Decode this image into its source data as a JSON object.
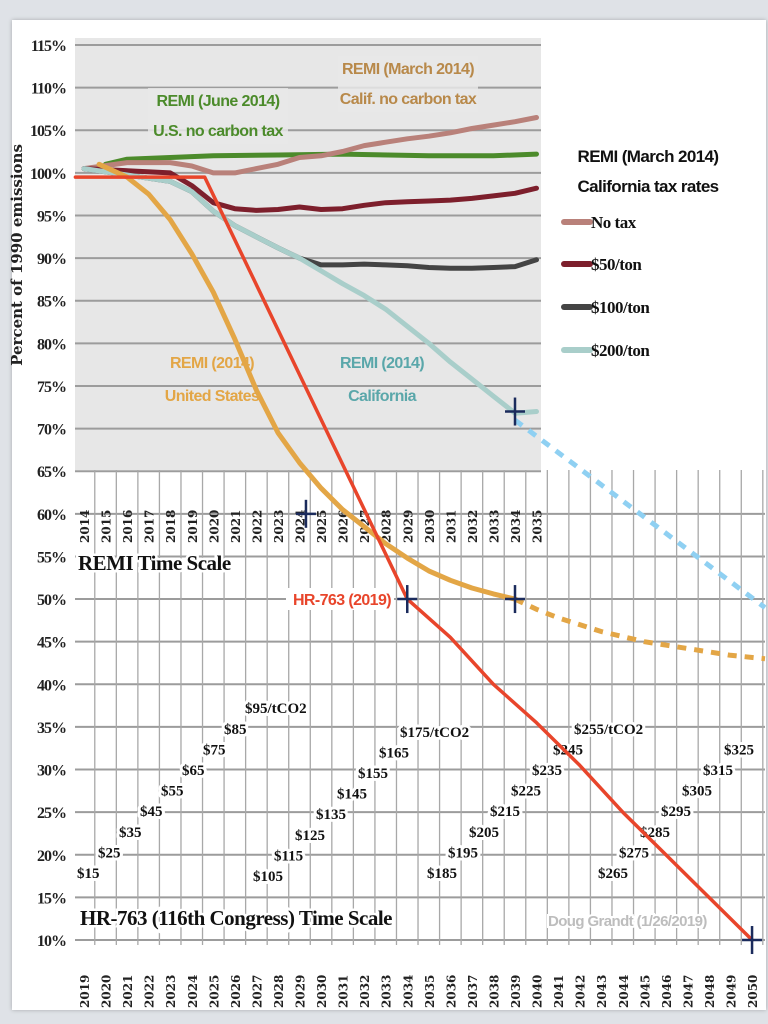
{
  "chart_data": {
    "type": "line",
    "ylabel": "Percent of 1990 emissions",
    "ylim": [
      10,
      115
    ],
    "y_ticks": [
      "115%",
      "110%",
      "105%",
      "100%",
      "95%",
      "90%",
      "85%",
      "80%",
      "75%",
      "70%",
      "65%",
      "60%",
      "55%",
      "50%",
      "45%",
      "40%",
      "35%",
      "30%",
      "25%",
      "20%",
      "15%",
      "10%"
    ],
    "grid": true,
    "x_axes": [
      {
        "label": "REMI Time Scale",
        "ticks": [
          "2014",
          "2015",
          "2016",
          "2017",
          "2018",
          "2019",
          "2020",
          "2021",
          "2022",
          "2023",
          "2024",
          "2025",
          "2026",
          "2027",
          "2028",
          "2029",
          "2030",
          "2031",
          "2032",
          "2033",
          "2034",
          "2035"
        ]
      },
      {
        "label": "HR-763 (116th Congress) Time Scale",
        "ticks": [
          "2019",
          "2020",
          "2021",
          "2022",
          "2023",
          "2024",
          "2025",
          "2026",
          "2027",
          "2028",
          "2029",
          "2030",
          "2031",
          "2032",
          "2033",
          "2034",
          "2035",
          "2036",
          "2037",
          "2038",
          "2039",
          "2040",
          "2041",
          "2042",
          "2043",
          "2044",
          "2045",
          "2046",
          "2047",
          "2048",
          "2049",
          "2050"
        ]
      }
    ],
    "legend": {
      "placement": "right",
      "title": [
        "REMI (March 2014)",
        "California tax rates"
      ],
      "items": [
        {
          "name": "No tax",
          "color": "#b9817a"
        },
        {
          "name": "$50/ton",
          "color": "#7d1f2c"
        },
        {
          "name": "$100/ton",
          "color": "#444444"
        },
        {
          "name": "$200/ton",
          "color": "#a9ceca"
        }
      ]
    },
    "series": [
      {
        "id": "us-no-tax",
        "color": "#4c8b2b",
        "axis": "REMI",
        "points": [
          [
            2015,
            101
          ],
          [
            2016,
            101.6
          ],
          [
            2018,
            101.8
          ],
          [
            2020,
            102
          ],
          [
            2023,
            102.1
          ],
          [
            2026,
            102.2
          ],
          [
            2030,
            102
          ],
          [
            2033,
            102
          ],
          [
            2035,
            102.2
          ]
        ]
      },
      {
        "id": "no-tax",
        "name": "No tax",
        "color": "#b9817a",
        "axis": "REMI",
        "points": [
          [
            2014,
            100.5
          ],
          [
            2016,
            101.2
          ],
          [
            2018,
            101.2
          ],
          [
            2019,
            100.8
          ],
          [
            2020,
            100
          ],
          [
            2021,
            100
          ],
          [
            2022,
            100.5
          ],
          [
            2023,
            101
          ],
          [
            2024,
            101.8
          ],
          [
            2025,
            102
          ],
          [
            2026,
            102.5
          ],
          [
            2027,
            103.2
          ],
          [
            2028,
            103.6
          ],
          [
            2029,
            104
          ],
          [
            2030,
            104.3
          ],
          [
            2031,
            104.7
          ],
          [
            2032,
            105.2
          ],
          [
            2033,
            105.6
          ],
          [
            2034,
            106
          ],
          [
            2035,
            106.5
          ]
        ]
      },
      {
        "id": "tax-50",
        "name": "$50/ton",
        "color": "#7d1f2c",
        "axis": "REMI",
        "points": [
          [
            2014,
            100.5
          ],
          [
            2018,
            100
          ],
          [
            2019,
            98.5
          ],
          [
            2020,
            96.5
          ],
          [
            2021,
            95.8
          ],
          [
            2022,
            95.6
          ],
          [
            2023,
            95.7
          ],
          [
            2024,
            96
          ],
          [
            2025,
            95.7
          ],
          [
            2026,
            95.8
          ],
          [
            2027,
            96.2
          ],
          [
            2028,
            96.5
          ],
          [
            2029,
            96.6
          ],
          [
            2030,
            96.7
          ],
          [
            2031,
            96.8
          ],
          [
            2032,
            97
          ],
          [
            2033,
            97.3
          ],
          [
            2034,
            97.6
          ],
          [
            2035,
            98.2
          ]
        ]
      },
      {
        "id": "tax-100",
        "name": "$100/ton",
        "color": "#444444",
        "axis": "REMI",
        "points": [
          [
            2014,
            100.5
          ],
          [
            2018,
            99
          ],
          [
            2019,
            97.8
          ],
          [
            2020,
            95.5
          ],
          [
            2021,
            93.8
          ],
          [
            2022,
            92.5
          ],
          [
            2023,
            91.2
          ],
          [
            2024,
            90
          ],
          [
            2025,
            89.2
          ],
          [
            2026,
            89.2
          ],
          [
            2027,
            89.3
          ],
          [
            2028,
            89.2
          ],
          [
            2029,
            89.1
          ],
          [
            2030,
            88.9
          ],
          [
            2031,
            88.8
          ],
          [
            2032,
            88.8
          ],
          [
            2033,
            88.9
          ],
          [
            2034,
            89
          ],
          [
            2035,
            89.8
          ]
        ]
      },
      {
        "id": "tax-200",
        "name": "$200/ton",
        "color": "#a9ceca",
        "axis": "REMI",
        "points": [
          [
            2014,
            100.5
          ],
          [
            2018,
            99
          ],
          [
            2019,
            97.8
          ],
          [
            2020,
            95.5
          ],
          [
            2021,
            93.8
          ],
          [
            2022,
            92.5
          ],
          [
            2023,
            91.2
          ],
          [
            2024,
            90
          ],
          [
            2025,
            88.5
          ],
          [
            2026,
            87
          ],
          [
            2027,
            85.6
          ],
          [
            2028,
            84
          ],
          [
            2029,
            82
          ],
          [
            2030,
            80
          ],
          [
            2031,
            77.8
          ],
          [
            2032,
            75.8
          ],
          [
            2033,
            73.8
          ],
          [
            2034,
            71.8
          ],
          [
            2035,
            72
          ]
        ]
      },
      {
        "id": "tax-200-extension",
        "color": "#8fd0f2",
        "dashed": true,
        "axis": "REMI",
        "points": [
          [
            2034,
            71
          ],
          [
            2045.6,
            49
          ]
        ]
      },
      {
        "id": "remi-us",
        "color": "#e3a646",
        "axis": "REMI",
        "points": [
          [
            2014.7,
            101
          ],
          [
            2016,
            99.5
          ],
          [
            2017,
            97.5
          ],
          [
            2018,
            94.5
          ],
          [
            2019,
            90.5
          ],
          [
            2020,
            86
          ],
          [
            2021,
            80.5
          ],
          [
            2022,
            74.5
          ],
          [
            2023,
            69.5
          ],
          [
            2024,
            66
          ],
          [
            2025,
            63
          ],
          [
            2026,
            60.5
          ],
          [
            2027,
            58.5
          ],
          [
            2028,
            56.5
          ],
          [
            2029,
            54.8
          ],
          [
            2030,
            53.3
          ],
          [
            2031,
            52.2
          ],
          [
            2032,
            51.3
          ],
          [
            2033,
            50.6
          ],
          [
            2034,
            50
          ]
        ]
      },
      {
        "id": "remi-us-extension",
        "color": "#e3a646",
        "dashed": true,
        "axis": "REMI",
        "points": [
          [
            2034,
            50
          ],
          [
            2035,
            48.8
          ],
          [
            2036,
            47.8
          ],
          [
            2038,
            46.2
          ],
          [
            2040,
            45
          ],
          [
            2042,
            44.2
          ],
          [
            2044,
            43.4
          ],
          [
            2045.6,
            43
          ]
        ]
      },
      {
        "id": "hr-763",
        "color": "#e8452b",
        "axis": "HR-763",
        "points": [
          [
            2018.6,
            99.5
          ],
          [
            2024.6,
            99.5
          ],
          [
            2034,
            50
          ],
          [
            2036,
            45.5
          ],
          [
            2038,
            40
          ],
          [
            2040,
            35.5
          ],
          [
            2042,
            30.5
          ],
          [
            2044,
            25
          ],
          [
            2046,
            20
          ],
          [
            2048,
            15
          ],
          [
            2050,
            10
          ]
        ]
      }
    ],
    "markers": [
      {
        "axis": "HR-763",
        "x": 2029.3,
        "y": 60
      },
      {
        "axis": "HR-763",
        "x": 2034,
        "y": 50
      },
      {
        "axis": "HR-763",
        "x": 2039,
        "y": 50
      },
      {
        "axis": "HR-763",
        "x": 2039,
        "y": 72
      },
      {
        "axis": "HR-763",
        "x": 2050,
        "y": 10
      }
    ],
    "marker_color": "#1b2b5c",
    "annotations": {
      "us_no_tax": [
        "REMI (June 2014)",
        "U.S. no carbon tax"
      ],
      "calif_no_tax": [
        "REMI (March 2014)",
        "Calif. no carbon tax"
      ],
      "remi_us": [
        "REMI (2014)",
        "United States"
      ],
      "remi_ca": [
        "REMI (2014)",
        "California"
      ],
      "hr763": "HR-763 (2019)",
      "credit": "Doug Grandt (1/26/2019)"
    },
    "annotation_colors": {
      "us_no_tax": "#4c8b2b",
      "calif_no_tax": "#b8894a",
      "remi_us": "#e3a646",
      "remi_ca": "#5aa7aa",
      "hr763": "#e8452b",
      "credit": "#bdbdbd"
    },
    "price_labels": [
      [
        "$15",
        "$25",
        "$35",
        "$45",
        "$55",
        "$65",
        "$75",
        "$85",
        "$95/tCO2"
      ],
      [
        "$105",
        "$115",
        "$125",
        "$135",
        "$145",
        "$155",
        "$165",
        "$175/tCO2"
      ],
      [
        "$185",
        "$195",
        "$205",
        "$215",
        "$225",
        "$235",
        "$245",
        "$255/tCO2"
      ],
      [
        "$265",
        "$275",
        "$285",
        "$295",
        "$305",
        "$315",
        "$325"
      ]
    ]
  }
}
